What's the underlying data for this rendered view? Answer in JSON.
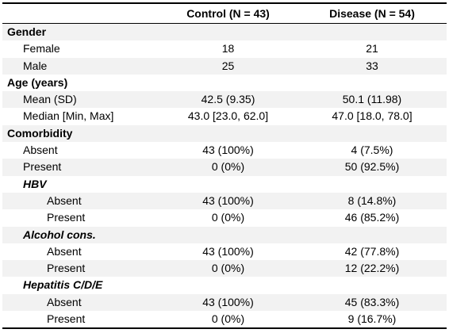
{
  "table": {
    "headers": [
      "",
      "Control (N = 43)",
      "Disease (N = 54)"
    ],
    "rows": [
      {
        "label": "Gender",
        "level": 0,
        "control": "",
        "disease": ""
      },
      {
        "label": "Female",
        "level": 1,
        "control": "18",
        "disease": "21"
      },
      {
        "label": "Male",
        "level": 1,
        "control": "25",
        "disease": "33"
      },
      {
        "label": "Age (years)",
        "level": 0,
        "control": "",
        "disease": ""
      },
      {
        "label": "Mean (SD)",
        "level": 1,
        "control": "42.5 (9.35)",
        "disease": "50.1 (11.98)"
      },
      {
        "label": "Median [Min, Max]",
        "level": 1,
        "control": "43.0 [23.0, 62.0]",
        "disease": "47.0 [18.0, 78.0]"
      },
      {
        "label": "Comorbidity",
        "level": 0,
        "control": "",
        "disease": ""
      },
      {
        "label": "Absent",
        "level": 1,
        "control": "43 (100%)",
        "disease": "4 (7.5%)"
      },
      {
        "label": "Present",
        "level": 1,
        "control": "0 (0%)",
        "disease": "50 (92.5%)"
      },
      {
        "label": "HBV",
        "level": "1s",
        "control": "",
        "disease": ""
      },
      {
        "label": "Absent",
        "level": 2,
        "control": "43 (100%)",
        "disease": "8 (14.8%)"
      },
      {
        "label": "Present",
        "level": 2,
        "control": "0 (0%)",
        "disease": "46 (85.2%)"
      },
      {
        "label": "Alcohol cons.",
        "level": "1s",
        "control": "",
        "disease": ""
      },
      {
        "label": "Absent",
        "level": 2,
        "control": "43 (100%)",
        "disease": "42 (77.8%)"
      },
      {
        "label": "Present",
        "level": 2,
        "control": "0 (0%)",
        "disease": "12 (22.2%)"
      },
      {
        "label": "Hepatitis C/D/E",
        "level": "1s",
        "control": "",
        "disease": ""
      },
      {
        "label": "Absent",
        "level": 2,
        "control": "43 (100%)",
        "disease": "45 (83.3%)"
      },
      {
        "label": "Present",
        "level": 2,
        "control": "0 (0%)",
        "disease": "9 (16.7%)"
      }
    ]
  }
}
